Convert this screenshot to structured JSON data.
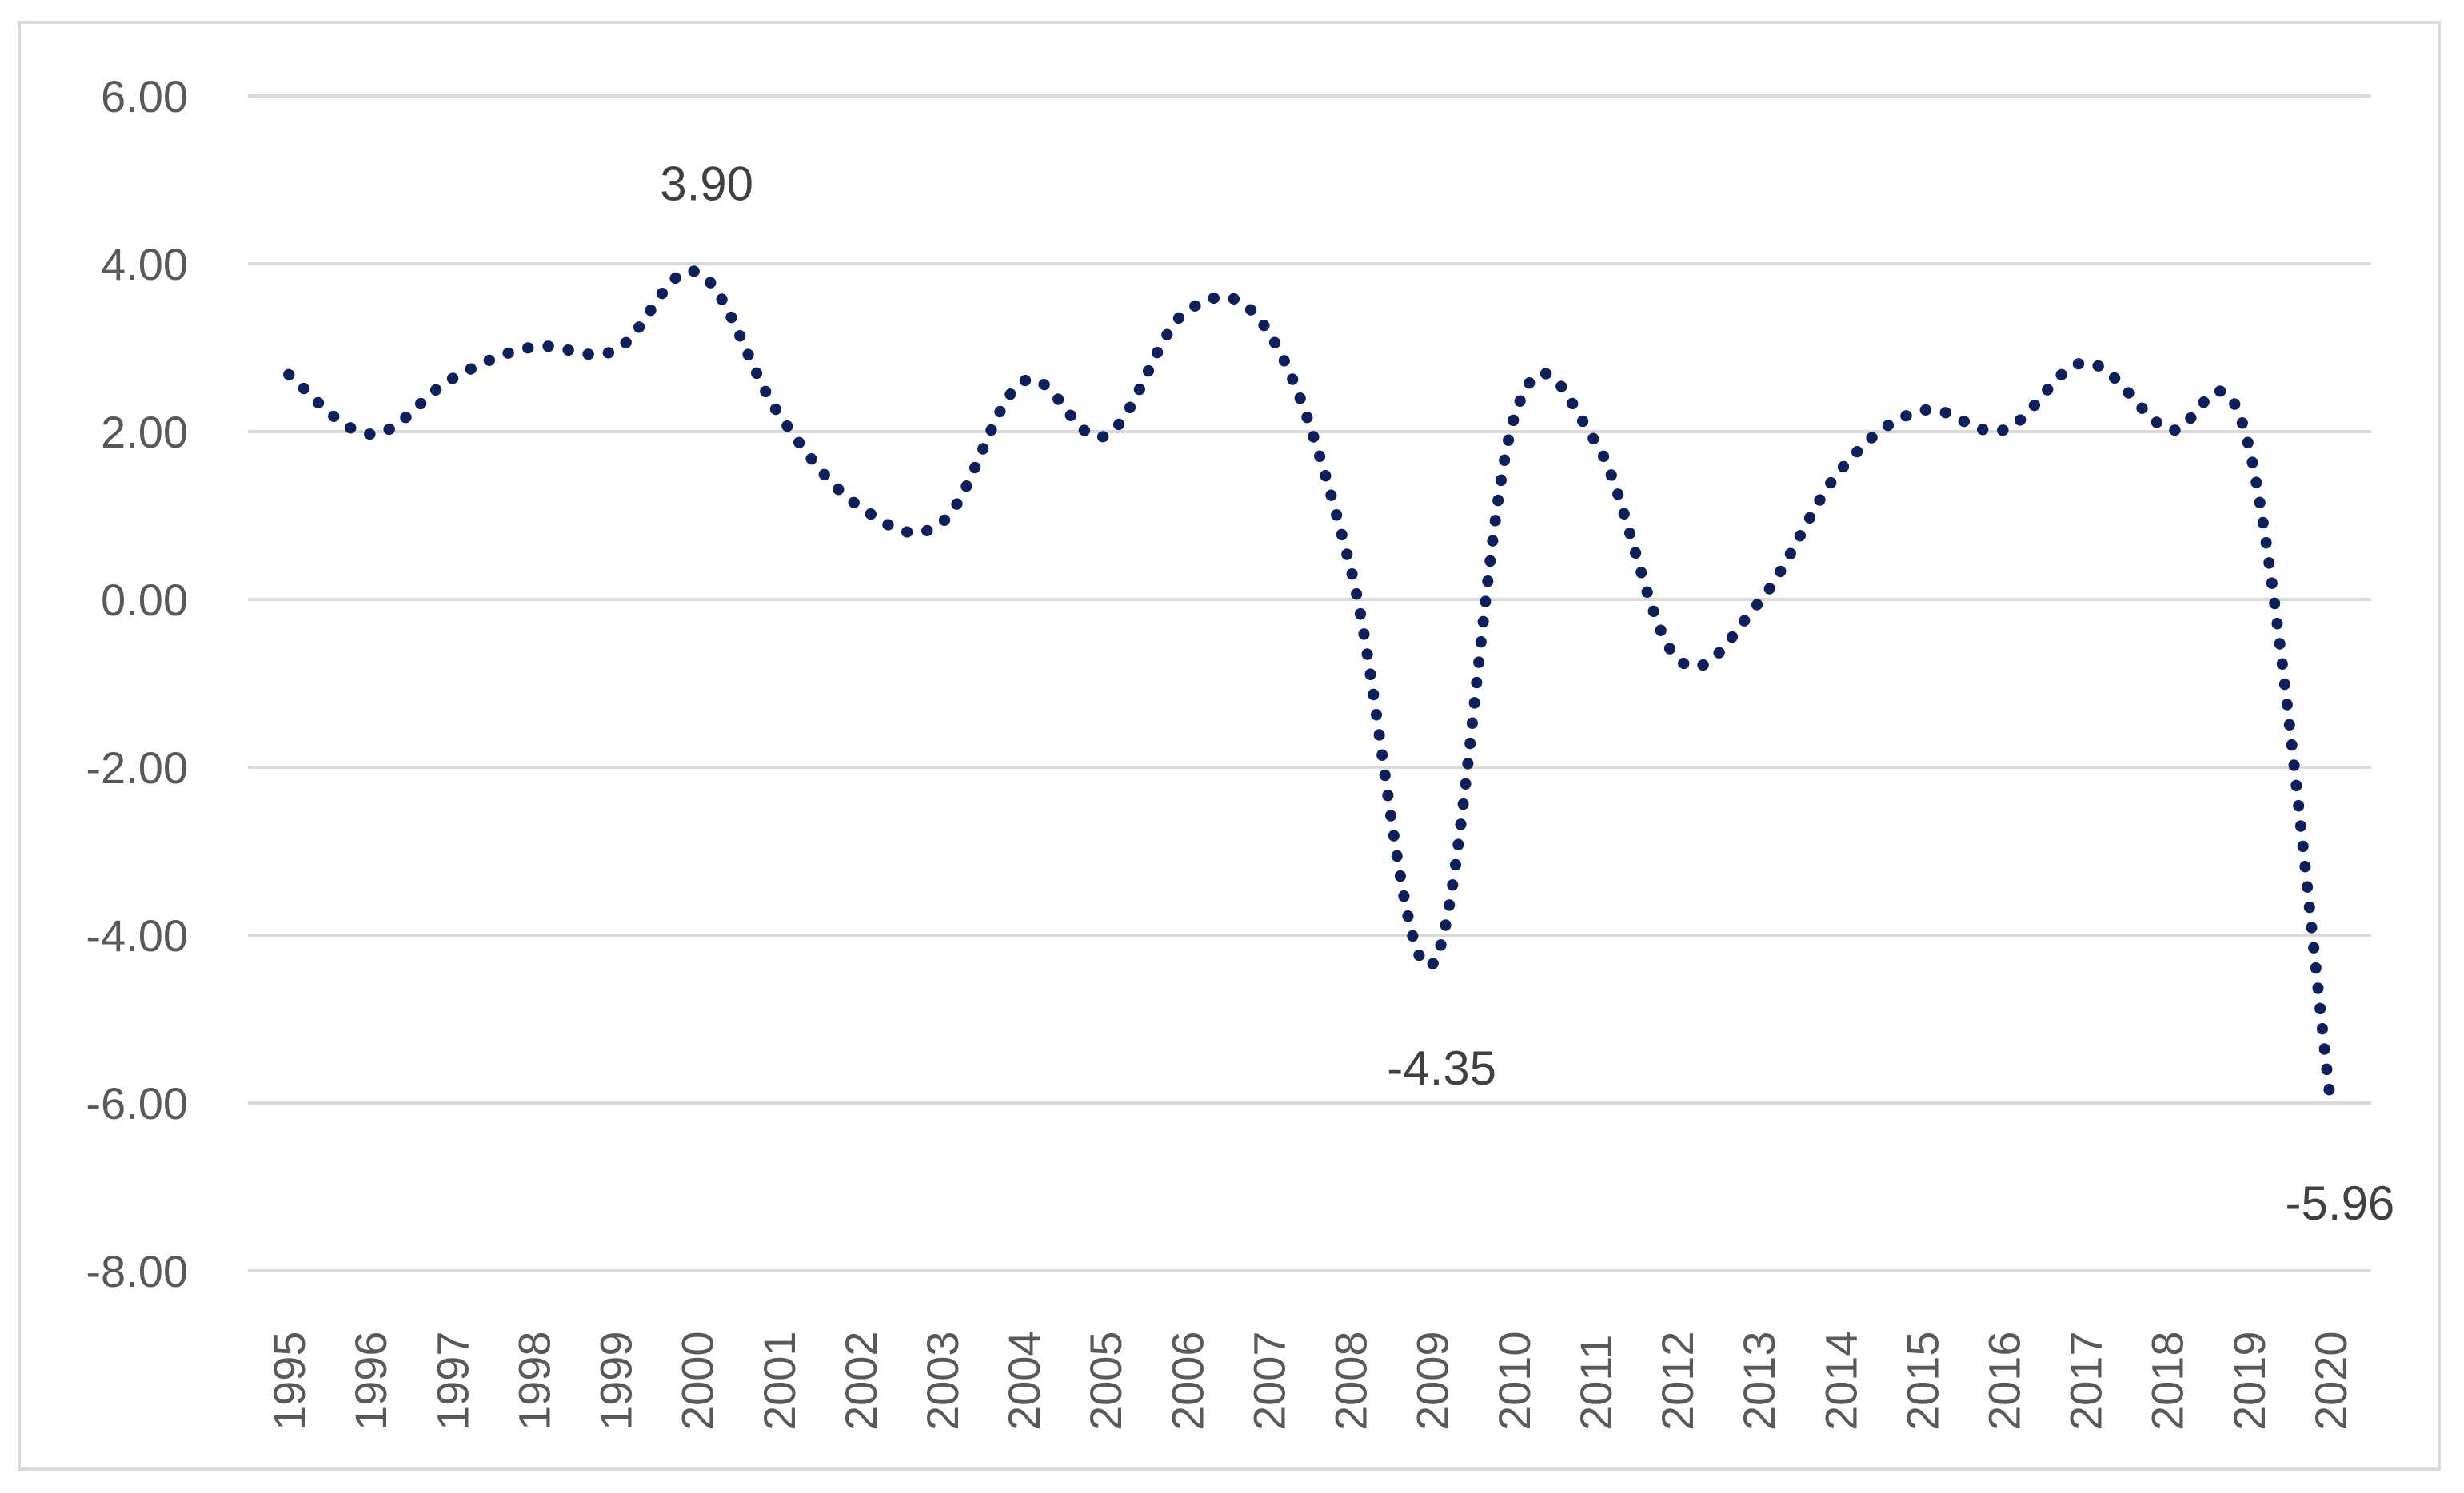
{
  "chart_data": {
    "type": "line",
    "title": "",
    "xlabel": "",
    "ylabel": "",
    "ylim": [
      -8,
      6
    ],
    "yticks": [
      "6.00",
      "4.00",
      "2.00",
      "0.00",
      "-2.00",
      "-4.00",
      "-6.00",
      "-8.00"
    ],
    "grid": true,
    "legend": "none",
    "line_style": "dotted",
    "series_color": "#0d1f5c",
    "categories": [
      "1995",
      "1996",
      "1997",
      "1998",
      "1999",
      "2000",
      "2001",
      "2002",
      "2003",
      "2004",
      "2005",
      "2006",
      "2007",
      "2008",
      "2009",
      "2010",
      "2011",
      "2012",
      "2013",
      "2014",
      "2015",
      "2016",
      "2017",
      "2018",
      "2019",
      "2020"
    ],
    "series": [
      {
        "values": [
          2.68,
          1.97,
          2.63,
          3.01,
          2.97,
          3.9,
          2.21,
          1.1,
          0.92,
          2.6,
          1.95,
          3.44,
          3.18,
          0.38,
          -4.35,
          2.15,
          1.88,
          -0.7,
          -0.04,
          1.54,
          2.25,
          2.02,
          2.82,
          2.03,
          1.83,
          -5.96
        ]
      }
    ],
    "annotations": [
      {
        "category": "2000",
        "value": 3.9,
        "text": "3.90",
        "position": "above"
      },
      {
        "category": "2009",
        "value": -4.35,
        "text": "-4.35",
        "position": "below"
      },
      {
        "category": "2020",
        "value": -5.96,
        "text": "-5.96",
        "position": "below"
      }
    ]
  }
}
